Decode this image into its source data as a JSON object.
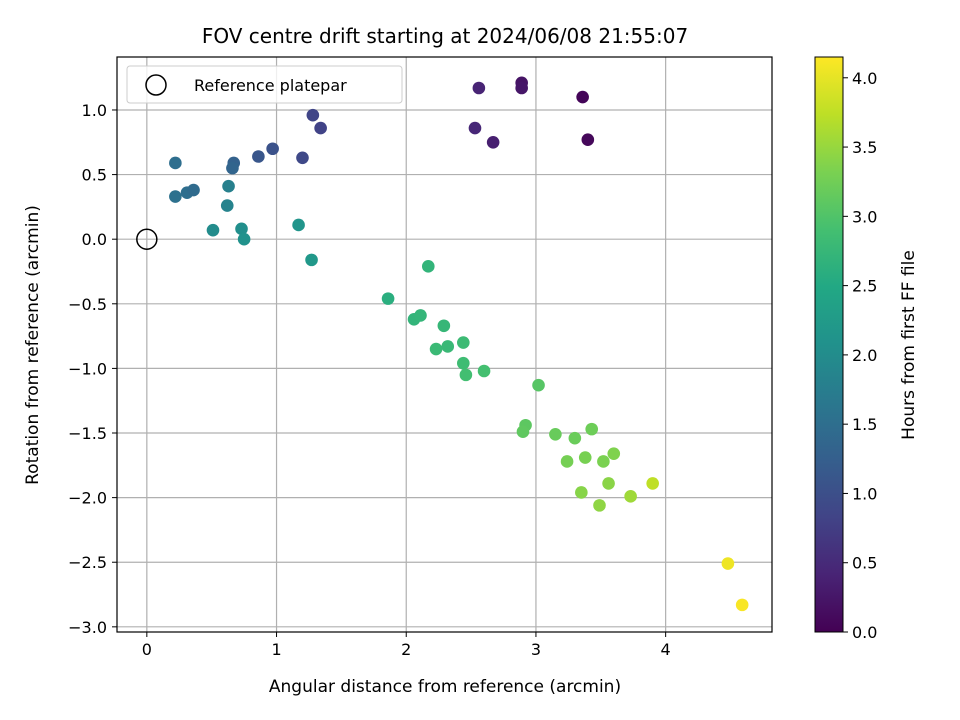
{
  "chart_data": {
    "type": "scatter",
    "title": "FOV centre drift starting at 2024/06/08 21:55:07",
    "xlabel": "Angular distance from reference (arcmin)",
    "ylabel": "Rotation from reference (arcmin)",
    "xlim": [
      -0.23,
      4.82
    ],
    "ylim": [
      -3.04,
      1.41
    ],
    "xticks": [
      0,
      1,
      2,
      3,
      4
    ],
    "yticks": [
      -3.0,
      -2.5,
      -2.0,
      -1.5,
      -1.0,
      -0.5,
      0.0,
      0.5,
      1.0
    ],
    "grid": true,
    "legend": {
      "placement": "top-left",
      "entries": [
        "Reference platepar"
      ]
    },
    "reference_point": {
      "x": 0.0,
      "y": 0.0,
      "label": "Reference platepar"
    },
    "colorbar": {
      "label": "Hours from first FF file",
      "colormap": "viridis",
      "range": [
        0.0,
        4.15
      ],
      "ticks": [
        0.0,
        0.5,
        1.0,
        1.5,
        2.0,
        2.5,
        3.0,
        3.5,
        4.0
      ]
    },
    "points": [
      {
        "x": 3.36,
        "y": 1.1,
        "c": 0.05
      },
      {
        "x": 3.4,
        "y": 0.77,
        "c": 0.08
      },
      {
        "x": 2.89,
        "y": 1.21,
        "c": 0.22
      },
      {
        "x": 2.89,
        "y": 1.17,
        "c": 0.25
      },
      {
        "x": 2.56,
        "y": 1.17,
        "c": 0.42
      },
      {
        "x": 2.53,
        "y": 0.86,
        "c": 0.45
      },
      {
        "x": 2.67,
        "y": 0.75,
        "c": 0.35
      },
      {
        "x": 1.28,
        "y": 0.96,
        "c": 0.85
      },
      {
        "x": 1.34,
        "y": 0.86,
        "c": 0.82
      },
      {
        "x": 0.97,
        "y": 0.7,
        "c": 1.05
      },
      {
        "x": 0.86,
        "y": 0.64,
        "c": 1.1
      },
      {
        "x": 1.2,
        "y": 0.63,
        "c": 0.9
      },
      {
        "x": 0.67,
        "y": 0.59,
        "c": 1.3
      },
      {
        "x": 0.66,
        "y": 0.55,
        "c": 1.35
      },
      {
        "x": 0.22,
        "y": 0.59,
        "c": 1.5
      },
      {
        "x": 0.22,
        "y": 0.33,
        "c": 1.55
      },
      {
        "x": 0.31,
        "y": 0.36,
        "c": 1.5
      },
      {
        "x": 0.36,
        "y": 0.38,
        "c": 1.45
      },
      {
        "x": 0.63,
        "y": 0.41,
        "c": 1.8
      },
      {
        "x": 0.62,
        "y": 0.26,
        "c": 1.85
      },
      {
        "x": 0.51,
        "y": 0.07,
        "c": 2.0
      },
      {
        "x": 0.73,
        "y": 0.08,
        "c": 2.05
      },
      {
        "x": 0.75,
        "y": 0.0,
        "c": 2.1
      },
      {
        "x": 1.17,
        "y": 0.11,
        "c": 2.15
      },
      {
        "x": 1.27,
        "y": -0.16,
        "c": 2.2
      },
      {
        "x": 2.17,
        "y": -0.21,
        "c": 2.7
      },
      {
        "x": 1.86,
        "y": -0.46,
        "c": 2.6
      },
      {
        "x": 2.06,
        "y": -0.62,
        "c": 2.7
      },
      {
        "x": 2.11,
        "y": -0.59,
        "c": 2.72
      },
      {
        "x": 2.29,
        "y": -0.67,
        "c": 2.75
      },
      {
        "x": 2.23,
        "y": -0.85,
        "c": 2.8
      },
      {
        "x": 2.32,
        "y": -0.83,
        "c": 2.78
      },
      {
        "x": 2.44,
        "y": -0.8,
        "c": 2.82
      },
      {
        "x": 2.44,
        "y": -0.96,
        "c": 2.85
      },
      {
        "x": 2.46,
        "y": -1.05,
        "c": 2.88
      },
      {
        "x": 2.6,
        "y": -1.02,
        "c": 2.9
      },
      {
        "x": 3.02,
        "y": -1.13,
        "c": 3.05
      },
      {
        "x": 2.92,
        "y": -1.44,
        "c": 3.1
      },
      {
        "x": 2.9,
        "y": -1.49,
        "c": 3.12
      },
      {
        "x": 3.15,
        "y": -1.51,
        "c": 3.18
      },
      {
        "x": 3.3,
        "y": -1.54,
        "c": 3.2
      },
      {
        "x": 3.43,
        "y": -1.47,
        "c": 3.22
      },
      {
        "x": 3.38,
        "y": -1.69,
        "c": 3.3
      },
      {
        "x": 3.24,
        "y": -1.72,
        "c": 3.28
      },
      {
        "x": 3.52,
        "y": -1.72,
        "c": 3.32
      },
      {
        "x": 3.6,
        "y": -1.66,
        "c": 3.35
      },
      {
        "x": 3.35,
        "y": -1.96,
        "c": 3.4
      },
      {
        "x": 3.56,
        "y": -1.89,
        "c": 3.42
      },
      {
        "x": 3.49,
        "y": -2.06,
        "c": 3.45
      },
      {
        "x": 3.73,
        "y": -1.99,
        "c": 3.55
      },
      {
        "x": 3.9,
        "y": -1.89,
        "c": 3.75
      },
      {
        "x": 4.48,
        "y": -2.51,
        "c": 4.05
      },
      {
        "x": 4.59,
        "y": -2.83,
        "c": 4.12
      }
    ]
  }
}
